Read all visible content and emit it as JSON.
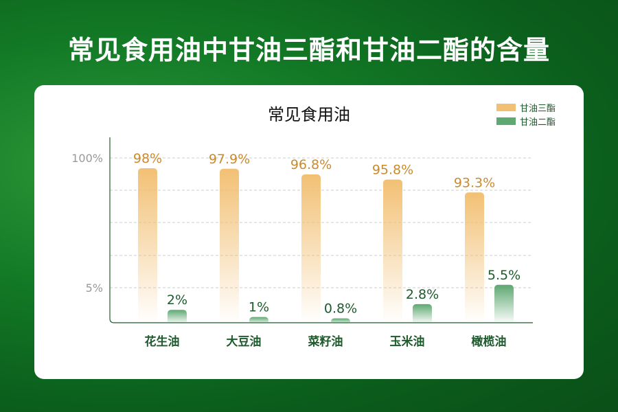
{
  "title": "常见食用油中甘油三酯和甘油二酯的含量",
  "chart_data": {
    "type": "bar",
    "title": "常见食用油",
    "categories": [
      "花生油",
      "大豆油",
      "菜籽油",
      "玉米油",
      "橄榄油"
    ],
    "series": [
      {
        "name": "甘油三酯",
        "color": "#f2c074",
        "label_color": "#c98b2e",
        "values": [
          98,
          97.9,
          96.8,
          95.8,
          93.3
        ],
        "labels": [
          "98%",
          "97.9%",
          "96.8%",
          "95.8%",
          "93.3%"
        ]
      },
      {
        "name": "甘油二酯",
        "color": "#5ea872",
        "label_color": "#1d5a2c",
        "values": [
          2,
          1,
          0.8,
          2.8,
          5.5
        ],
        "labels": [
          "2%",
          "1%",
          "0.8%",
          "2.8%",
          "5.5%"
        ]
      }
    ],
    "yticks": [
      "100%",
      "5%"
    ],
    "axis": "broken",
    "legend": "top-right",
    "grid": true
  }
}
